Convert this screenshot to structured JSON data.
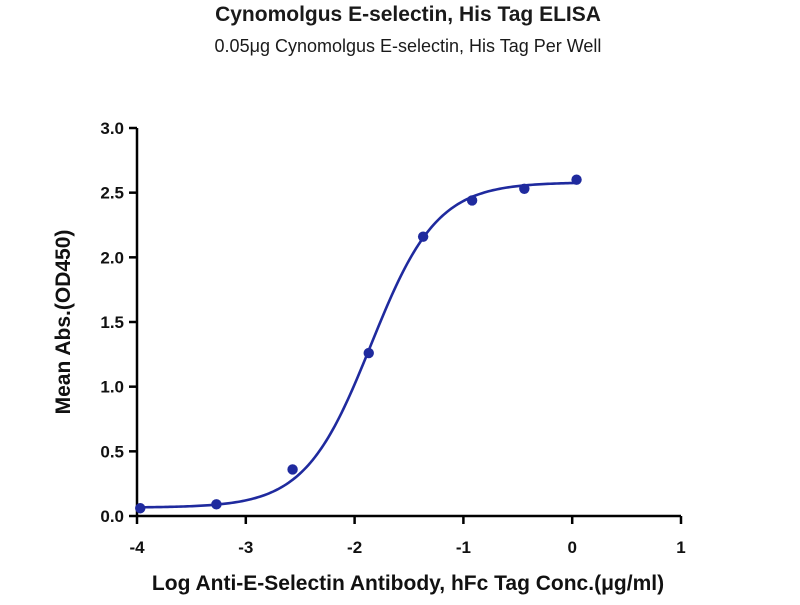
{
  "chart_data": {
    "type": "scatter",
    "title": "Cynomolgus E-selectin, His Tag ELISA",
    "subtitle": "0.05μg Cynomolgus E-selectin, His Tag Per Well",
    "xlabel": "Log Anti-E-Selectin Antibody, hFc Tag Conc.(μg/ml)",
    "ylabel": "Mean Abs.(OD450)",
    "xlim": [
      -4,
      1
    ],
    "ylim": [
      0,
      3.0
    ],
    "x_ticks": [
      "-4",
      "-3",
      "-2",
      "-1",
      "0",
      "1"
    ],
    "x_tick_values": [
      -4,
      -3,
      -2,
      -1,
      0,
      1
    ],
    "y_ticks": [
      "0.0",
      "0.5",
      "1.0",
      "1.5",
      "2.0",
      "2.5",
      "3.0"
    ],
    "y_tick_values": [
      0,
      0.5,
      1.0,
      1.5,
      2.0,
      2.5,
      3.0
    ],
    "grid": false,
    "legend": "none",
    "color": "#1f2a9e",
    "series": [
      {
        "x": [
          -3.97,
          -3.27,
          -2.57,
          -1.87,
          -1.37,
          -0.92,
          -0.44,
          0.04
        ],
        "values": [
          0.06,
          0.09,
          0.36,
          1.26,
          2.16,
          2.44,
          2.53,
          2.6
        ],
        "fit": {
          "model": "4PL",
          "bottom": 0.065,
          "top": 2.58,
          "logEC50": -1.85,
          "hill": 1.43,
          "x_range": [
            -4.0,
            0.04
          ]
        }
      }
    ]
  }
}
